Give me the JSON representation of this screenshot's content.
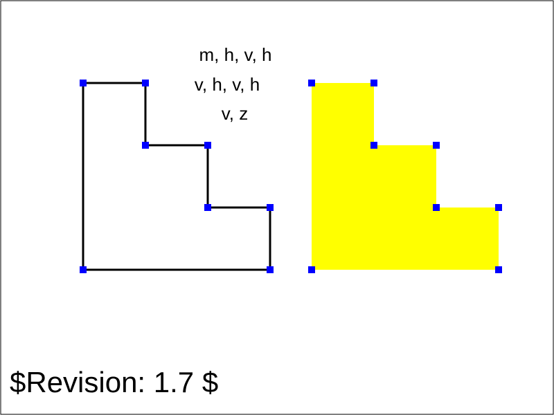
{
  "diagram": {
    "path_commands": [
      "m, h, v, h",
      "v, h, v, h",
      "v, z"
    ],
    "revision": "$Revision: 1.7 $",
    "colors": {
      "border": "#000000",
      "outline_stroke": "#000000",
      "fill": "#ffff00",
      "vertex_marker": "#0000ff"
    }
  }
}
